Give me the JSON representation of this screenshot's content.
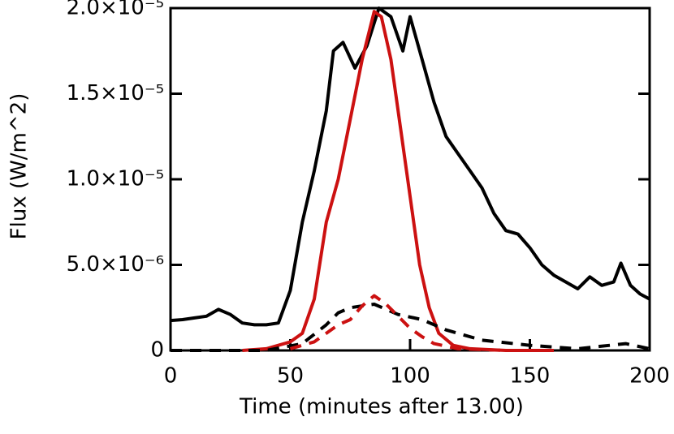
{
  "chart_data": {
    "type": "line",
    "xlabel": "Time (minutes after 13.00)",
    "ylabel": "Flux (W/m^2)",
    "xlim": [
      0,
      200
    ],
    "xticks": [
      0,
      50,
      100,
      150,
      200
    ],
    "ylim": [
      0,
      2e-05
    ],
    "yticks": [
      0,
      {
        "value": 5e-06,
        "label": "5.0×10⁻⁶"
      },
      {
        "value": 1e-05,
        "label": "1.0×10⁻⁵"
      },
      {
        "value": 1.5e-05,
        "label": "1.5×10⁻⁵"
      },
      {
        "value": 2e-05,
        "label": "2.0×10⁻⁵"
      }
    ],
    "series": [
      {
        "color": "#000000",
        "style": "solid",
        "x": [
          0,
          5,
          10,
          15,
          20,
          25,
          30,
          35,
          40,
          45,
          50,
          55,
          60,
          65,
          68,
          72,
          77,
          82,
          87,
          92,
          97,
          100,
          105,
          110,
          115,
          120,
          125,
          130,
          135,
          140,
          145,
          150,
          155,
          160,
          165,
          170,
          175,
          180,
          185,
          188,
          192,
          196,
          200
        ],
        "values": [
          1.75e-06,
          1.8e-06,
          1.9e-06,
          2e-06,
          2.4e-06,
          2.1e-06,
          1.6e-06,
          1.5e-06,
          1.5e-06,
          1.6e-06,
          3.5e-06,
          7.5e-06,
          1.05e-05,
          1.4e-05,
          1.75e-05,
          1.8e-05,
          1.65e-05,
          1.78e-05,
          2e-05,
          1.95e-05,
          1.75e-05,
          1.95e-05,
          1.7e-05,
          1.45e-05,
          1.25e-05,
          1.15e-05,
          1.05e-05,
          9.5e-06,
          8e-06,
          7e-06,
          6.8e-06,
          6e-06,
          5e-06,
          4.4e-06,
          4e-06,
          3.6e-06,
          4.3e-06,
          3.8e-06,
          4e-06,
          5.1e-06,
          3.8e-06,
          3.3e-06,
          3e-06
        ]
      },
      {
        "color": "#cc1111",
        "style": "solid",
        "x": [
          30,
          40,
          50,
          55,
          60,
          65,
          70,
          75,
          80,
          85,
          88,
          92,
          96,
          100,
          104,
          108,
          112,
          118,
          125,
          140,
          160
        ],
        "values": [
          0,
          1e-07,
          5e-07,
          1e-06,
          3e-06,
          7.5e-06,
          1e-05,
          1.35e-05,
          1.7e-05,
          1.98e-05,
          1.95e-05,
          1.7e-05,
          1.3e-05,
          9e-06,
          5e-06,
          2.5e-06,
          1e-06,
          3e-07,
          1e-07,
          0,
          0
        ]
      },
      {
        "color": "#000000",
        "style": "dashed",
        "x": [
          0,
          40,
          55,
          65,
          70,
          75,
          80,
          85,
          95,
          105,
          115,
          130,
          150,
          170,
          190,
          200
        ],
        "values": [
          0,
          0,
          4e-07,
          1.5e-06,
          2.2e-06,
          2.5e-06,
          2.6e-06,
          2.7e-06,
          2.1e-06,
          1.8e-06,
          1.2e-06,
          6e-07,
          3e-07,
          1e-07,
          4e-07,
          1e-07
        ]
      },
      {
        "color": "#cc1111",
        "style": "dashed",
        "x": [
          50,
          60,
          65,
          70,
          75,
          80,
          85,
          90,
          95,
          100,
          105,
          110,
          120,
          140
        ],
        "values": [
          1e-07,
          5e-07,
          1e-06,
          1.5e-06,
          1.8e-06,
          2.6e-06,
          3.2e-06,
          2.7e-06,
          2e-06,
          1.3e-06,
          8e-07,
          4e-07,
          1e-07,
          0
        ]
      }
    ]
  }
}
